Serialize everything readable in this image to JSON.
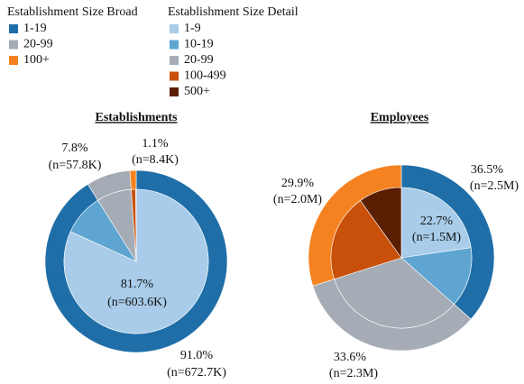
{
  "chart_data": [
    {
      "type": "pie",
      "title": "Establishments",
      "series": [
        {
          "name": "Establishment Size Broad",
          "categories": [
            "1-19",
            "20-99",
            "100+"
          ],
          "colors": [
            "#1f6ea8",
            "#a5acb5",
            "#f58220"
          ],
          "values": [
            91.0,
            7.8,
            1.1
          ],
          "value_labels": [
            [
              "91.0%",
              "(n=672.7K)"
            ],
            [
              "7.8%",
              "(n=57.8K)"
            ],
            [
              "1.1%",
              "(n=8.4K)"
            ]
          ]
        },
        {
          "name": "Establishment Size Detail",
          "categories": [
            "1-9",
            "10-19",
            "20-99",
            "100-499",
            "500+"
          ],
          "colors": [
            "#a8cce9",
            "#5ea5d1",
            "#a5acb5",
            "#c8500a",
            "#5a1e02"
          ],
          "values": [
            81.7,
            9.3,
            7.8,
            1.0,
            0.1
          ],
          "value_labels": [
            [
              "81.7%",
              "(n=603.6K)"
            ],
            null,
            null,
            null,
            null
          ]
        }
      ]
    },
    {
      "type": "pie",
      "title": "Employees",
      "series": [
        {
          "name": "Establishment Size Broad",
          "categories": [
            "1-19",
            "20-99",
            "100+"
          ],
          "colors": [
            "#1f6ea8",
            "#a5acb5",
            "#f58220"
          ],
          "values": [
            36.5,
            33.6,
            29.9
          ],
          "value_labels": [
            [
              "36.5%",
              "(n=2.5M)"
            ],
            [
              "33.6%",
              "(n=2.3M)"
            ],
            [
              "29.9%",
              "(n=2.0M)"
            ]
          ]
        },
        {
          "name": "Establishment Size Detail",
          "categories": [
            "1-9",
            "10-19",
            "20-99",
            "100-499",
            "500+"
          ],
          "colors": [
            "#a8cce9",
            "#5ea5d1",
            "#a5acb5",
            "#c8500a",
            "#5a1e02"
          ],
          "values": [
            22.7,
            13.8,
            33.6,
            20.0,
            9.9
          ],
          "value_labels": [
            [
              "22.7%",
              "(n=1.5M)"
            ],
            null,
            null,
            null,
            null
          ]
        }
      ]
    }
  ]
}
